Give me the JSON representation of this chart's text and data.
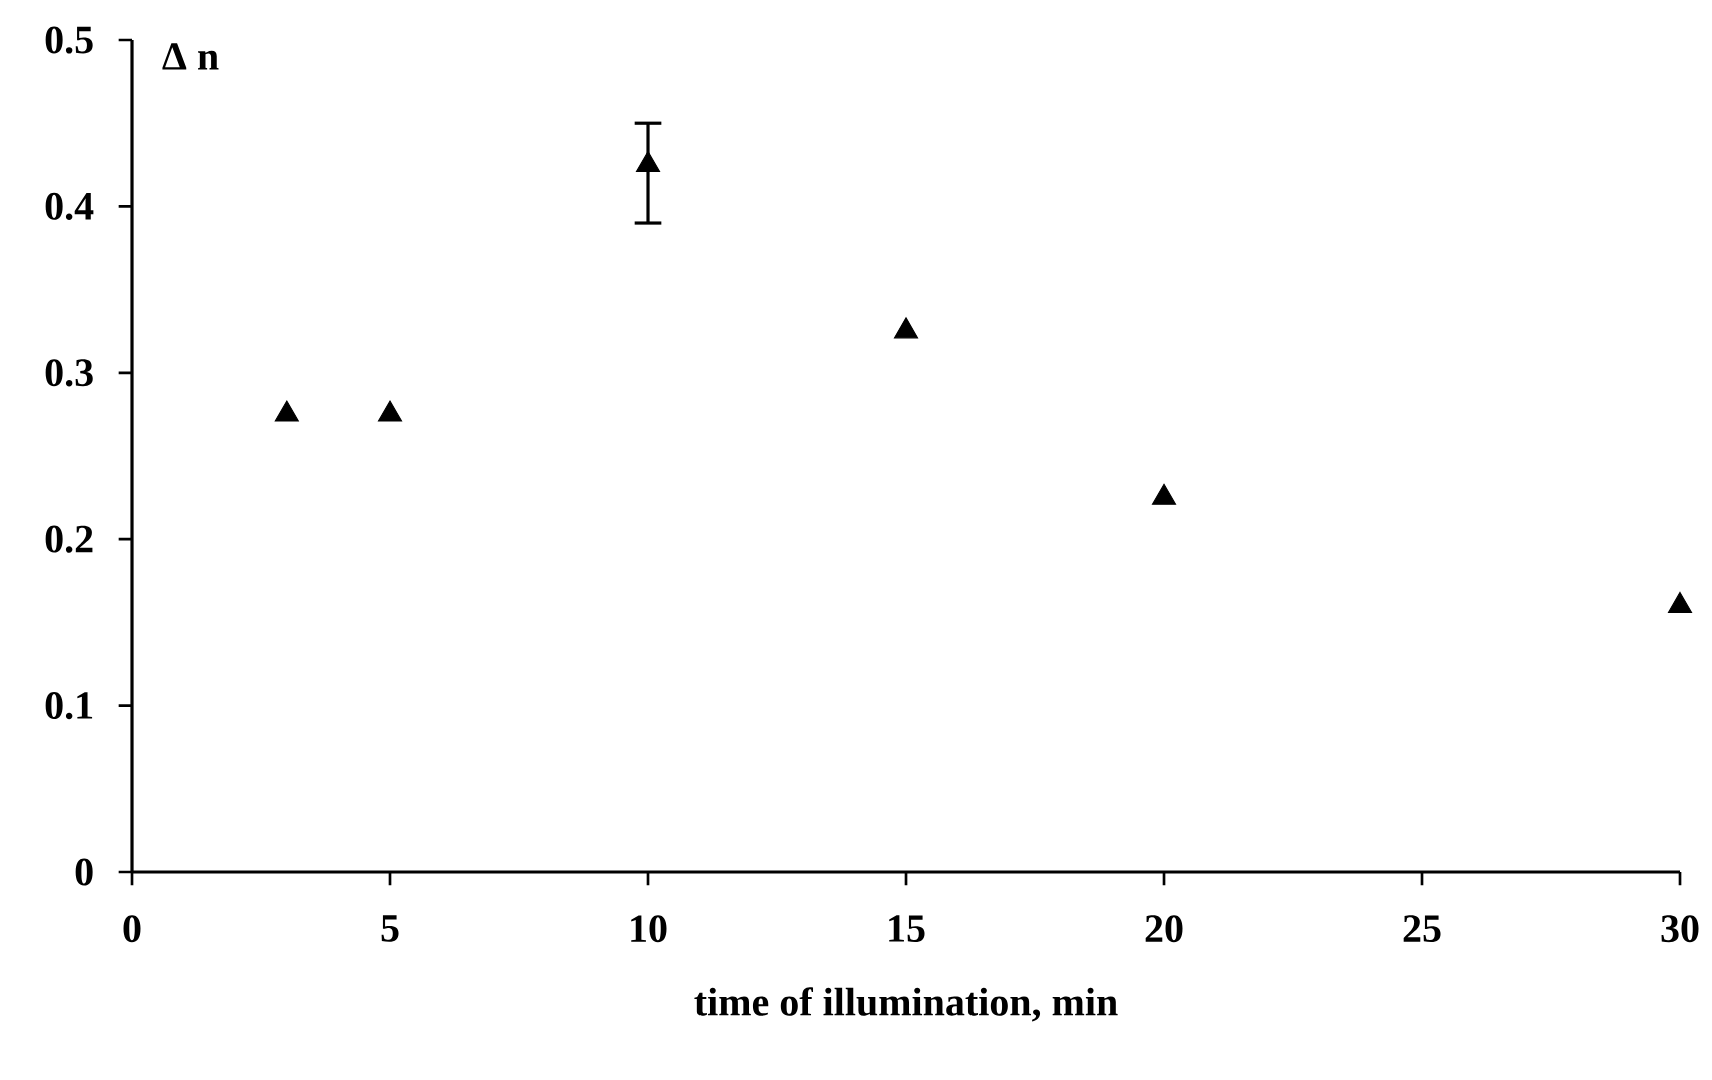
{
  "chart_data": {
    "type": "scatter",
    "xlabel": "time of illumination, min",
    "ylabel": "Δ n",
    "x": [
      3,
      5,
      10,
      15,
      20,
      30
    ],
    "values": [
      0.275,
      0.275,
      0.425,
      0.325,
      0.225,
      0.16
    ],
    "errors": [
      null,
      null,
      [
        0.39,
        0.45
      ],
      null,
      null,
      null
    ],
    "color": "#000000",
    "marker": "triangle",
    "xlim": [
      0,
      30
    ],
    "xticks": [
      0,
      5,
      10,
      15,
      20,
      25,
      30
    ],
    "ylim": [
      0,
      0.5
    ],
    "yticks": [
      0,
      0.1,
      0.2,
      0.3,
      0.4,
      0.5
    ],
    "grid": false
  }
}
